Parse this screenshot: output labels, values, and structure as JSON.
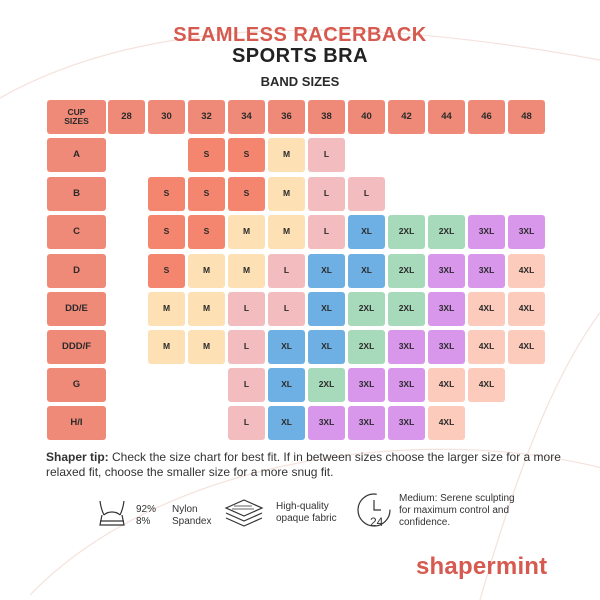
{
  "title": {
    "line1": "SEAMLESS RACERBACK",
    "line2": "SPORTS BRA"
  },
  "band_sizes_title": "BAND SIZES",
  "table": {
    "corner_label": "CUP\nSIZES",
    "bands": [
      "28",
      "30",
      "32",
      "34",
      "36",
      "38",
      "40",
      "42",
      "44",
      "46",
      "48"
    ],
    "rows": [
      {
        "cup": "A",
        "sizes": [
          "",
          "",
          "S",
          "S",
          "M",
          "L",
          "",
          "",
          "",
          "",
          ""
        ]
      },
      {
        "cup": "B",
        "sizes": [
          "",
          "S",
          "S",
          "S",
          "M",
          "L",
          "L",
          "",
          "",
          "",
          ""
        ]
      },
      {
        "cup": "C",
        "sizes": [
          "",
          "S",
          "S",
          "M",
          "M",
          "L",
          "XL",
          "2XL",
          "2XL",
          "3XL",
          "3XL"
        ]
      },
      {
        "cup": "D",
        "sizes": [
          "",
          "S",
          "M",
          "M",
          "L",
          "XL",
          "XL",
          "2XL",
          "3XL",
          "3XL",
          "4XL"
        ]
      },
      {
        "cup": "DD/E",
        "sizes": [
          "",
          "M",
          "M",
          "L",
          "L",
          "XL",
          "2XL",
          "2XL",
          "3XL",
          "4XL",
          "4XL"
        ]
      },
      {
        "cup": "DDD/F",
        "sizes": [
          "",
          "M",
          "M",
          "L",
          "XL",
          "XL",
          "2XL",
          "3XL",
          "3XL",
          "4XL",
          "4XL"
        ]
      },
      {
        "cup": "G",
        "sizes": [
          "",
          "",
          "",
          "L",
          "XL",
          "2XL",
          "3XL",
          "3XL",
          "4XL",
          "4XL",
          ""
        ]
      },
      {
        "cup": "H/I",
        "sizes": [
          "",
          "",
          "",
          "L",
          "XL",
          "3XL",
          "3XL",
          "3XL",
          "4XL",
          "",
          ""
        ]
      }
    ]
  },
  "size_colors": {
    "S": "#f4866f",
    "M": "#fde0b4",
    "L": "#f3bdc0",
    "XL": "#6fb0e4",
    "2XL": "#a7d9bb",
    "3XL": "#d997ec",
    "4XL": "#fccbbb",
    "header": "#f08a78"
  },
  "tip": {
    "label": "Shaper tip:",
    "text": " Check the size chart for best fit. If in between sizes choose the larger size for a more relaxed fit, choose the smaller size for a more snug fit."
  },
  "features": {
    "fabric": {
      "pct1": "92%",
      "pct2": "8%",
      "mat1": "Nylon",
      "mat2": "Spandex",
      "icon": "bra-outline-icon"
    },
    "quality": {
      "line1": "High-quality",
      "line2": "opaque fabric",
      "icon": "fabric-layers-icon"
    },
    "support": {
      "line1": "Medium: Serene sculpting",
      "line2": "for maximum control and",
      "line3": "confidence.",
      "icon": "24-hour-clock-icon",
      "icon_text": "24"
    }
  },
  "brand": "shapermint"
}
